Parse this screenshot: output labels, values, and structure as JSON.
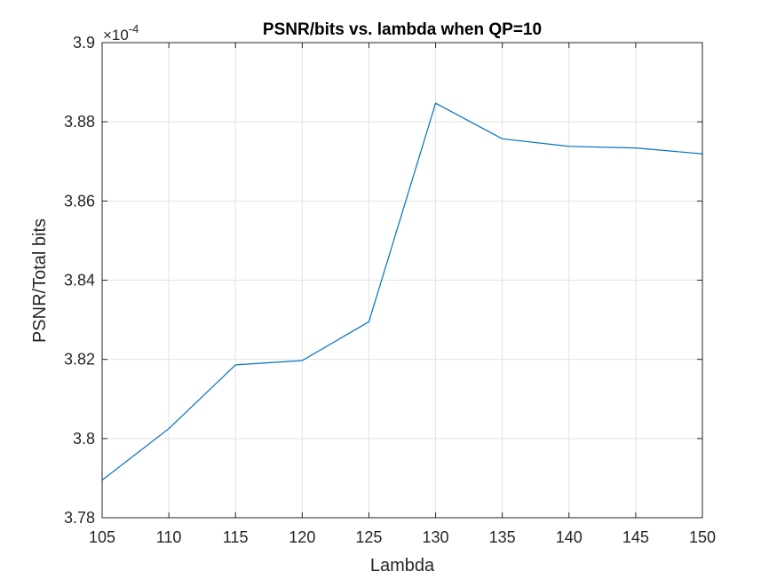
{
  "chart_data": {
    "type": "line",
    "title": "PSNR/bits vs. lambda when QP=10",
    "xlabel": "Lambda",
    "ylabel": "PSNR/Total bits",
    "exponent_base": "×10",
    "exponent_power": "-4",
    "xlim": [
      105,
      150
    ],
    "ylim": [
      3.78,
      3.9
    ],
    "xticks": [
      105,
      110,
      115,
      120,
      125,
      130,
      135,
      140,
      145,
      150
    ],
    "yticks": [
      3.78,
      3.8,
      3.82,
      3.84,
      3.86,
      3.88,
      3.9
    ],
    "ytick_labels": [
      "3.78",
      "3.8",
      "3.82",
      "3.84",
      "3.86",
      "3.88",
      "3.9"
    ],
    "grid": true,
    "series": [
      {
        "color": "#0072BD",
        "x": [
          105,
          110,
          115,
          120,
          125,
          130,
          135,
          140,
          145,
          150
        ],
        "y": [
          3.7895,
          3.8025,
          3.8186,
          3.8197,
          3.8295,
          3.8847,
          3.8757,
          3.8738,
          3.8734,
          3.8719
        ]
      }
    ]
  }
}
